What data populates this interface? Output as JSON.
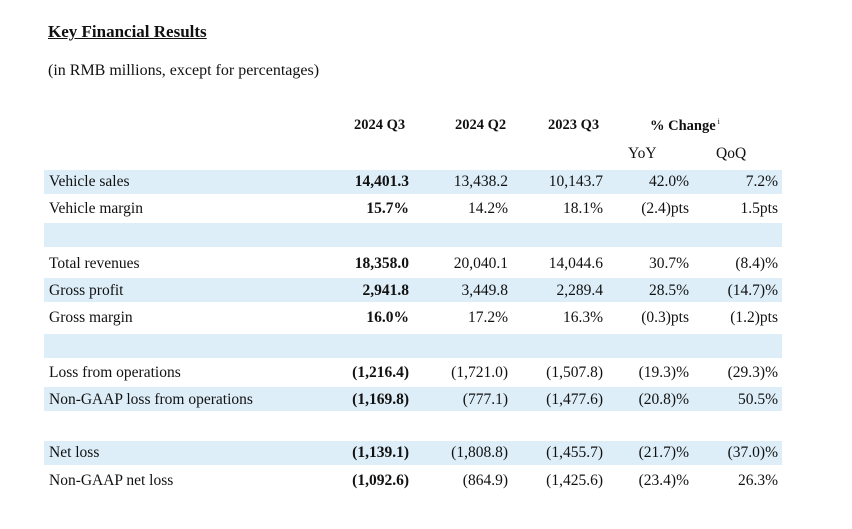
{
  "title": "Key Financial Results",
  "subtitle": "(in RMB millions, except for percentages)",
  "header": {
    "col_2024q3": "2024 Q3",
    "col_2024q2": "2024 Q2",
    "col_2023q3": "2023 Q3",
    "pct_change": "% Change",
    "pct_note": "i",
    "yoy": "YoY",
    "qoq": "QoQ"
  },
  "rows": [
    {
      "label": "Vehicle sales",
      "q3_2024": "14,401.3",
      "q2_2024": "13,438.2",
      "q3_2023": "10,143.7",
      "yoy": "42.0%",
      "qoq": "7.2%"
    },
    {
      "label": "Vehicle margin",
      "q3_2024": "15.7%",
      "q2_2024": "14.2%",
      "q3_2023": "18.1%",
      "yoy": "(2.4)pts",
      "qoq": "1.5pts"
    },
    {
      "label": "Total revenues",
      "q3_2024": "18,358.0",
      "q2_2024": "20,040.1",
      "q3_2023": "14,044.6",
      "yoy": "30.7%",
      "qoq": "(8.4)%"
    },
    {
      "label": "Gross profit",
      "q3_2024": "2,941.8",
      "q2_2024": "3,449.8",
      "q3_2023": "2,289.4",
      "yoy": "28.5%",
      "qoq": "(14.7)%"
    },
    {
      "label": "Gross margin",
      "q3_2024": "16.0%",
      "q2_2024": "17.2%",
      "q3_2023": "16.3%",
      "yoy": "(0.3)pts",
      "qoq": "(1.2)pts"
    },
    {
      "label": "Loss from operations",
      "q3_2024": "(1,216.4)",
      "q2_2024": "(1,721.0)",
      "q3_2023": "(1,507.8)",
      "yoy": "(19.3)%",
      "qoq": "(29.3)%"
    },
    {
      "label": "Non-GAAP loss from operations",
      "q3_2024": "(1,169.8)",
      "q2_2024": "(777.1)",
      "q3_2023": "(1,477.6)",
      "yoy": "(20.8)%",
      "qoq": "50.5%"
    },
    {
      "label": "Net loss",
      "q3_2024": "(1,139.1)",
      "q2_2024": "(1,808.8)",
      "q3_2023": "(1,455.7)",
      "yoy": "(21.7)%",
      "qoq": "(37.0)%"
    },
    {
      "label": "Non-GAAP net loss",
      "q3_2024": "(1,092.6)",
      "q2_2024": "(864.9)",
      "q3_2023": "(1,425.6)",
      "yoy": "(23.4)%",
      "qoq": "26.3%"
    }
  ]
}
